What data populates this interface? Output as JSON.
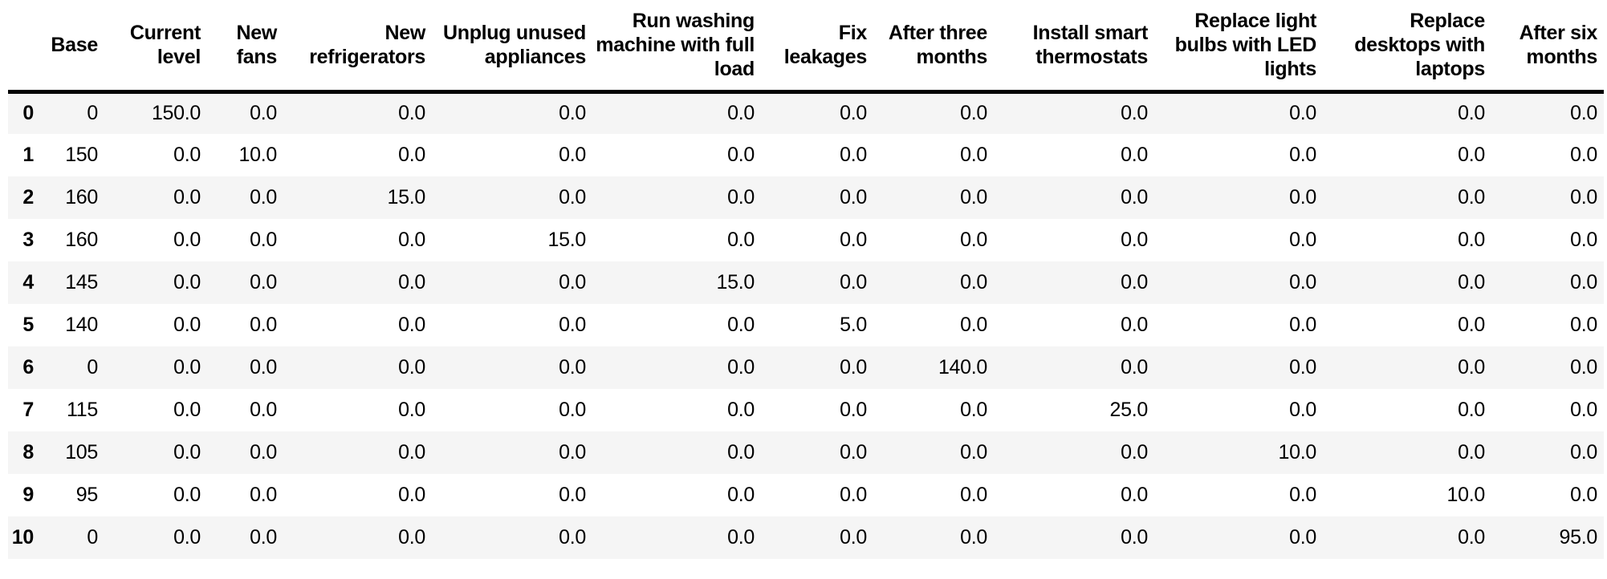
{
  "colors": {
    "stripe": "#f5f5f5",
    "header_border": "#000000",
    "text": "#000000",
    "background": "#ffffff"
  },
  "table": {
    "index_header": "",
    "columns": [
      "Base",
      "Current level",
      "New fans",
      "New refrigerators",
      "Unplug unused appliances",
      "Run washing machine with full load",
      "Fix leakages",
      "After three months",
      "Install smart thermostats",
      "Replace light bulbs with LED lights",
      "Replace desktops with laptops",
      "After six months"
    ],
    "rows": [
      {
        "index": "0",
        "values": [
          "0",
          "150.0",
          "0.0",
          "0.0",
          "0.0",
          "0.0",
          "0.0",
          "0.0",
          "0.0",
          "0.0",
          "0.0",
          "0.0"
        ]
      },
      {
        "index": "1",
        "values": [
          "150",
          "0.0",
          "10.0",
          "0.0",
          "0.0",
          "0.0",
          "0.0",
          "0.0",
          "0.0",
          "0.0",
          "0.0",
          "0.0"
        ]
      },
      {
        "index": "2",
        "values": [
          "160",
          "0.0",
          "0.0",
          "15.0",
          "0.0",
          "0.0",
          "0.0",
          "0.0",
          "0.0",
          "0.0",
          "0.0",
          "0.0"
        ]
      },
      {
        "index": "3",
        "values": [
          "160",
          "0.0",
          "0.0",
          "0.0",
          "15.0",
          "0.0",
          "0.0",
          "0.0",
          "0.0",
          "0.0",
          "0.0",
          "0.0"
        ]
      },
      {
        "index": "4",
        "values": [
          "145",
          "0.0",
          "0.0",
          "0.0",
          "0.0",
          "15.0",
          "0.0",
          "0.0",
          "0.0",
          "0.0",
          "0.0",
          "0.0"
        ]
      },
      {
        "index": "5",
        "values": [
          "140",
          "0.0",
          "0.0",
          "0.0",
          "0.0",
          "0.0",
          "5.0",
          "0.0",
          "0.0",
          "0.0",
          "0.0",
          "0.0"
        ]
      },
      {
        "index": "6",
        "values": [
          "0",
          "0.0",
          "0.0",
          "0.0",
          "0.0",
          "0.0",
          "0.0",
          "140.0",
          "0.0",
          "0.0",
          "0.0",
          "0.0"
        ]
      },
      {
        "index": "7",
        "values": [
          "115",
          "0.0",
          "0.0",
          "0.0",
          "0.0",
          "0.0",
          "0.0",
          "0.0",
          "25.0",
          "0.0",
          "0.0",
          "0.0"
        ]
      },
      {
        "index": "8",
        "values": [
          "105",
          "0.0",
          "0.0",
          "0.0",
          "0.0",
          "0.0",
          "0.0",
          "0.0",
          "0.0",
          "10.0",
          "0.0",
          "0.0"
        ]
      },
      {
        "index": "9",
        "values": [
          "95",
          "0.0",
          "0.0",
          "0.0",
          "0.0",
          "0.0",
          "0.0",
          "0.0",
          "0.0",
          "0.0",
          "10.0",
          "0.0"
        ]
      },
      {
        "index": "10",
        "values": [
          "0",
          "0.0",
          "0.0",
          "0.0",
          "0.0",
          "0.0",
          "0.0",
          "0.0",
          "0.0",
          "0.0",
          "0.0",
          "95.0"
        ]
      }
    ]
  }
}
